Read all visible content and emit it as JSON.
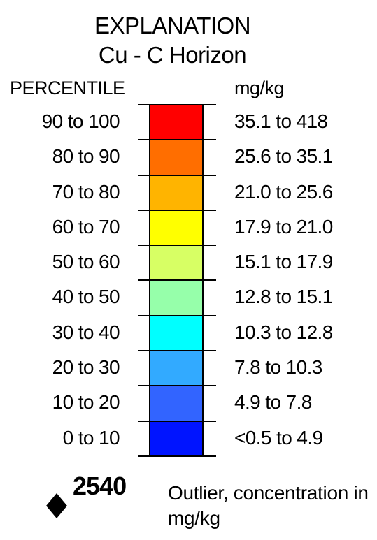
{
  "title": "EXPLANATION",
  "subtitle": "Cu - C Horizon",
  "percentile_header": "PERCENTILE",
  "unit_header": "mg/kg",
  "rows": [
    {
      "percentile": "90 to 100",
      "range": "35.1 to 418",
      "color": "#ff0000"
    },
    {
      "percentile": "80 to 90",
      "range": "25.6 to 35.1",
      "color": "#ff6e00"
    },
    {
      "percentile": "70 to 80",
      "range": "21.0 to 25.6",
      "color": "#ffb400"
    },
    {
      "percentile": "60 to 70",
      "range": "17.9 to 21.0",
      "color": "#ffff00"
    },
    {
      "percentile": "50 to 60",
      "range": "15.1 to 17.9",
      "color": "#d7ff64"
    },
    {
      "percentile": "40 to 50",
      "range": "12.8 to 15.1",
      "color": "#96ffaa"
    },
    {
      "percentile": "30 to 40",
      "range": "10.3 to 12.8",
      "color": "#00ffff"
    },
    {
      "percentile": "20 to 30",
      "range": "7.8 to 10.3",
      "color": "#32aaff"
    },
    {
      "percentile": "10 to 20",
      "range": "4.9 to 7.8",
      "color": "#3264ff"
    },
    {
      "percentile": "0 to 10",
      "range": "<0.5 to 4.9",
      "color": "#0014ff"
    }
  ],
  "outlier": {
    "symbol": "diamond-icon",
    "value": "2540",
    "description": "Outlier, concentration in mg/kg"
  }
}
